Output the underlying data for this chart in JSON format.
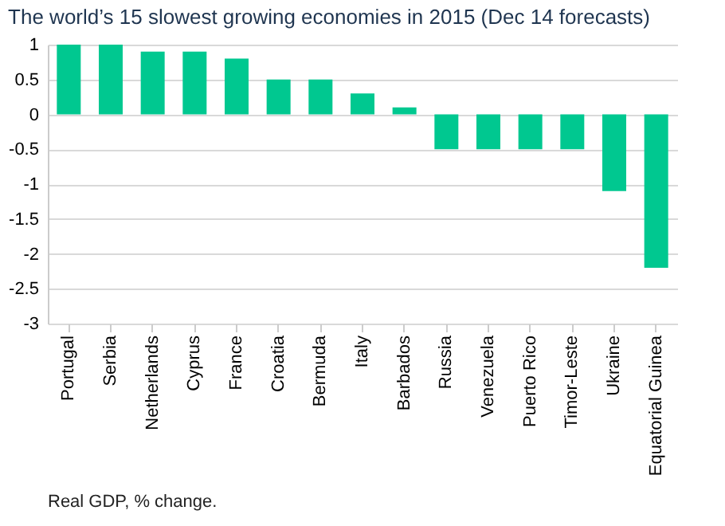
{
  "chart_data": {
    "type": "bar",
    "title": "The world’s 15 slowest growing economies in 2015 (Dec 14 forecasts)",
    "categories": [
      "Portugal",
      "Serbia",
      "Netherlands",
      "Cyprus",
      "France",
      "Croatia",
      "Bermuda",
      "Italy",
      "Barbados",
      "Russia",
      "Venezuela",
      "Puerto Rico",
      "Timor-Leste",
      "Ukraine",
      "Equatorial Guinea"
    ],
    "values": [
      1.0,
      1.0,
      0.9,
      0.9,
      0.8,
      0.5,
      0.5,
      0.3,
      0.1,
      -0.5,
      -0.5,
      -0.5,
      -0.5,
      -1.1,
      -2.2
    ],
    "color": "#00c890",
    "ylim": [
      -3,
      1
    ],
    "yticks": [
      -3,
      -2.5,
      -2,
      -1.5,
      -1,
      -0.5,
      0,
      0.5,
      1
    ],
    "grid": "y",
    "annotations": [
      "Real GDP, % change."
    ]
  }
}
